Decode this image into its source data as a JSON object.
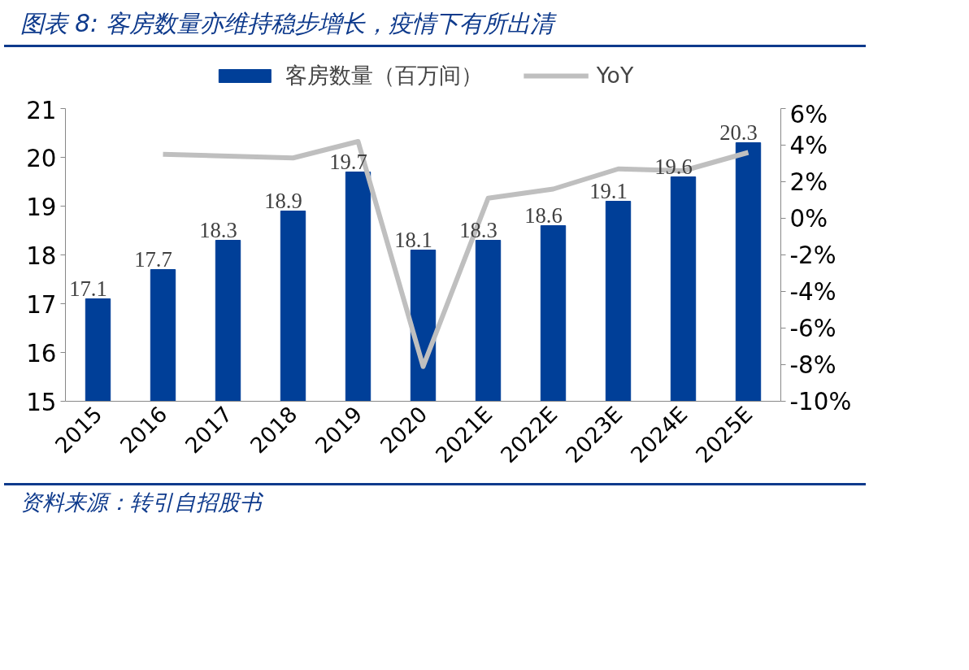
{
  "chart_data": {
    "type": "bar",
    "title": "图表 8:  客房数量亦维持稳步增长，疫情下有所出清",
    "categories": [
      "2015",
      "2016",
      "2017",
      "2018",
      "2019",
      "2020",
      "2021E",
      "2022E",
      "2023E",
      "2024E",
      "2025E"
    ],
    "series": [
      {
        "name": "客房数量（百万间）",
        "color": "#003f98",
        "values": [
          17.1,
          17.7,
          18.3,
          18.9,
          19.7,
          18.1,
          18.3,
          18.6,
          19.1,
          19.6,
          20.3
        ],
        "data_labels": true
      },
      {
        "name": "YoY",
        "type": "line",
        "axis": "y2",
        "color": "#bfbfbf",
        "values": [
          null,
          3.5,
          3.4,
          3.3,
          4.2,
          -8.1,
          1.1,
          1.6,
          2.7,
          2.6,
          3.6
        ]
      }
    ],
    "ylim": [
      15,
      21
    ],
    "yticks": [
      15,
      16,
      17,
      18,
      19,
      20,
      21
    ],
    "y2lim": [
      -10,
      6
    ],
    "y2ticks": [
      {
        "value": -10,
        "label": "-10%"
      },
      {
        "value": -8,
        "label": "-8%"
      },
      {
        "value": -6,
        "label": "-6%"
      },
      {
        "value": -4,
        "label": "-4%"
      },
      {
        "value": -2,
        "label": "-2%"
      },
      {
        "value": 0,
        "label": "0%"
      },
      {
        "value": 2,
        "label": "2%"
      },
      {
        "value": 4,
        "label": "4%"
      },
      {
        "value": 6,
        "label": "6%"
      }
    ],
    "grid": false,
    "legend": "top",
    "marker": "none",
    "annotations": [
      "资料来源：转引自招股书"
    ]
  }
}
